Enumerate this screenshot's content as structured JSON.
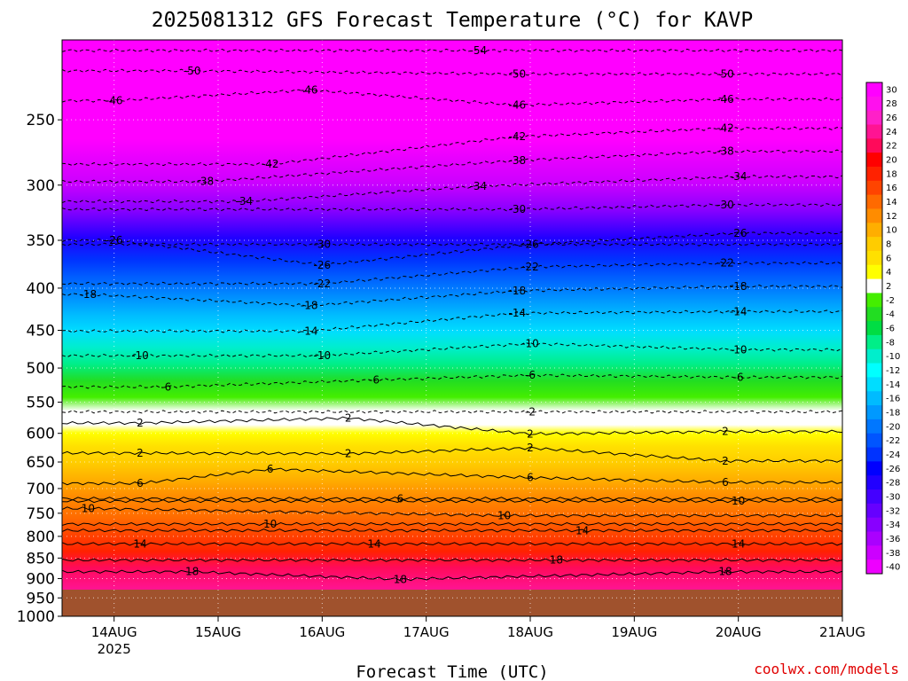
{
  "chart_data": {
    "type": "heatmap",
    "title": "2025081312 GFS Forecast Temperature (°C) for KAVP",
    "xlabel": "Forecast Time (UTC)",
    "ylabel": "",
    "x_ticks": [
      "14AUG",
      "15AUG",
      "16AUG",
      "17AUG",
      "18AUG",
      "19AUG",
      "20AUG",
      "21AUG"
    ],
    "x_year": "2025",
    "y_ticks": [
      250,
      300,
      350,
      400,
      450,
      500,
      550,
      600,
      650,
      700,
      750,
      800,
      850,
      900,
      950,
      1000
    ],
    "y_range": [
      200,
      1000
    ],
    "y_scale": "log",
    "y_reversed": true,
    "x_range": [
      "2025-08-13T12:00",
      "2025-08-21T00:00"
    ],
    "colorbar_labels": [
      30,
      28,
      26,
      24,
      22,
      20,
      18,
      16,
      14,
      12,
      10,
      8,
      6,
      4,
      2,
      -2,
      -4,
      -6,
      -8,
      -10,
      -12,
      -14,
      -16,
      -18,
      -20,
      -22,
      -24,
      -26,
      -28,
      -30,
      -32,
      -34,
      -36,
      -38,
      -40
    ],
    "colorbar_colors": [
      "#ff00ff",
      "#ff10ee",
      "#ff20c8",
      "#ff1493",
      "#ff0a5a",
      "#ff0000",
      "#ff2200",
      "#ff4400",
      "#ff6a00",
      "#ff8c00",
      "#ffae00",
      "#ffcc00",
      "#ffe000",
      "#ffff00",
      "#ffffff",
      "#44ee00",
      "#22dd22",
      "#00dd44",
      "#00ee88",
      "#00eecc",
      "#00ffff",
      "#00ddff",
      "#00bbff",
      "#0099ff",
      "#0077ff",
      "#0055ff",
      "#0033ff",
      "#0000ff",
      "#2200ff",
      "#4400ff",
      "#6600ff",
      "#8800ff",
      "#aa00ff",
      "#cc00ff",
      "#ee00ff"
    ],
    "contour_labels": [
      {
        "value": "-54",
        "time": "2025-08-17T12:00",
        "p": 206
      },
      {
        "value": "-50",
        "time": "2025-08-14T18:00",
        "p": 218
      },
      {
        "value": "-50",
        "time": "2025-08-17T21:00",
        "p": 220
      },
      {
        "value": "-50",
        "time": "2025-08-19T21:00",
        "p": 220
      },
      {
        "value": "-46",
        "time": "2025-08-14T00:00",
        "p": 237
      },
      {
        "value": "-46",
        "time": "2025-08-15T21:00",
        "p": 230
      },
      {
        "value": "-46",
        "time": "2025-08-17T21:00",
        "p": 240
      },
      {
        "value": "-46",
        "time": "2025-08-19T21:00",
        "p": 236
      },
      {
        "value": "-42",
        "time": "2025-08-15T12:00",
        "p": 283
      },
      {
        "value": "-42",
        "time": "2025-08-17T21:00",
        "p": 262
      },
      {
        "value": "-42",
        "time": "2025-08-19T21:00",
        "p": 256
      },
      {
        "value": "-38",
        "time": "2025-08-14T21:00",
        "p": 297
      },
      {
        "value": "-38",
        "time": "2025-08-17T21:00",
        "p": 280
      },
      {
        "value": "-38",
        "time": "2025-08-19T21:00",
        "p": 273
      },
      {
        "value": "-34",
        "time": "2025-08-15T06:00",
        "p": 314
      },
      {
        "value": "-34",
        "time": "2025-08-17T12:00",
        "p": 301
      },
      {
        "value": "-34",
        "time": "2025-08-20T00:00",
        "p": 293
      },
      {
        "value": "-30",
        "time": "2025-08-16T00:00",
        "p": 354
      },
      {
        "value": "-30",
        "time": "2025-08-17T21:00",
        "p": 321
      },
      {
        "value": "-30",
        "time": "2025-08-19T21:00",
        "p": 317
      },
      {
        "value": "-26",
        "time": "2025-08-14T00:00",
        "p": 350
      },
      {
        "value": "-26",
        "time": "2025-08-16T00:00",
        "p": 375
      },
      {
        "value": "-26",
        "time": "2025-08-18T00:00",
        "p": 354
      },
      {
        "value": "-26",
        "time": "2025-08-20T00:00",
        "p": 343
      },
      {
        "value": "-22",
        "time": "2025-08-16T00:00",
        "p": 395
      },
      {
        "value": "-22",
        "time": "2025-08-18T00:00",
        "p": 377
      },
      {
        "value": "-22",
        "time": "2025-08-19T21:00",
        "p": 373
      },
      {
        "value": "-18",
        "time": "2025-08-13T18:00",
        "p": 407
      },
      {
        "value": "-18",
        "time": "2025-08-15T21:00",
        "p": 420
      },
      {
        "value": "-18",
        "time": "2025-08-17T21:00",
        "p": 403
      },
      {
        "value": "-18",
        "time": "2025-08-20T00:00",
        "p": 398
      },
      {
        "value": "-14",
        "time": "2025-08-15T21:00",
        "p": 451
      },
      {
        "value": "-14",
        "time": "2025-08-17T21:00",
        "p": 429
      },
      {
        "value": "-14",
        "time": "2025-08-20T00:00",
        "p": 427
      },
      {
        "value": "-10",
        "time": "2025-08-14T06:00",
        "p": 483
      },
      {
        "value": "-10",
        "time": "2025-08-16T00:00",
        "p": 483
      },
      {
        "value": "-10",
        "time": "2025-08-18T00:00",
        "p": 467
      },
      {
        "value": "-10",
        "time": "2025-08-20T00:00",
        "p": 475
      },
      {
        "value": "-6",
        "time": "2025-08-14T12:00",
        "p": 527
      },
      {
        "value": "-6",
        "time": "2025-08-16T12:00",
        "p": 517
      },
      {
        "value": "-6",
        "time": "2025-08-18T00:00",
        "p": 510
      },
      {
        "value": "-6",
        "time": "2025-08-20T00:00",
        "p": 513
      },
      {
        "value": "-2",
        "time": "2025-08-18T00:00",
        "p": 565
      },
      {
        "value": "2",
        "time": "2025-08-14T06:00",
        "p": 583
      },
      {
        "value": "2",
        "time": "2025-08-16T06:00",
        "p": 575
      },
      {
        "value": "2",
        "time": "2025-08-18T00:00",
        "p": 601
      },
      {
        "value": "2",
        "time": "2025-08-19T21:00",
        "p": 597
      },
      {
        "value": "2",
        "time": "2025-08-14T06:00",
        "p": 634
      },
      {
        "value": "2",
        "time": "2025-08-16T06:00",
        "p": 635
      },
      {
        "value": "2",
        "time": "2025-08-18T00:00",
        "p": 625
      },
      {
        "value": "2",
        "time": "2025-08-19T21:00",
        "p": 648
      },
      {
        "value": "6",
        "time": "2025-08-14T06:00",
        "p": 690
      },
      {
        "value": "6",
        "time": "2025-08-15T12:00",
        "p": 663
      },
      {
        "value": "6",
        "time": "2025-08-16T18:00",
        "p": 720
      },
      {
        "value": "6",
        "time": "2025-08-18T00:00",
        "p": 679
      },
      {
        "value": "6",
        "time": "2025-08-19T21:00",
        "p": 688
      },
      {
        "value": "10",
        "time": "2025-08-13T18:00",
        "p": 740
      },
      {
        "value": "10",
        "time": "2025-08-15T12:00",
        "p": 773
      },
      {
        "value": "10",
        "time": "2025-08-17T18:00",
        "p": 755
      },
      {
        "value": "10",
        "time": "2025-08-20T00:00",
        "p": 725
      },
      {
        "value": "14",
        "time": "2025-08-14T06:00",
        "p": 817
      },
      {
        "value": "14",
        "time": "2025-08-16T12:00",
        "p": 817
      },
      {
        "value": "14",
        "time": "2025-08-18T12:00",
        "p": 787
      },
      {
        "value": "14",
        "time": "2025-08-20T00:00",
        "p": 817
      },
      {
        "value": "18",
        "time": "2025-08-14T18:00",
        "p": 883
      },
      {
        "value": "18",
        "time": "2025-08-16T18:00",
        "p": 902
      },
      {
        "value": "18",
        "time": "2025-08-18T06:00",
        "p": 855
      },
      {
        "value": "18",
        "time": "2025-08-19T21:00",
        "p": 883
      }
    ]
  },
  "footer": {
    "watermark": "coolwx.com/models"
  }
}
